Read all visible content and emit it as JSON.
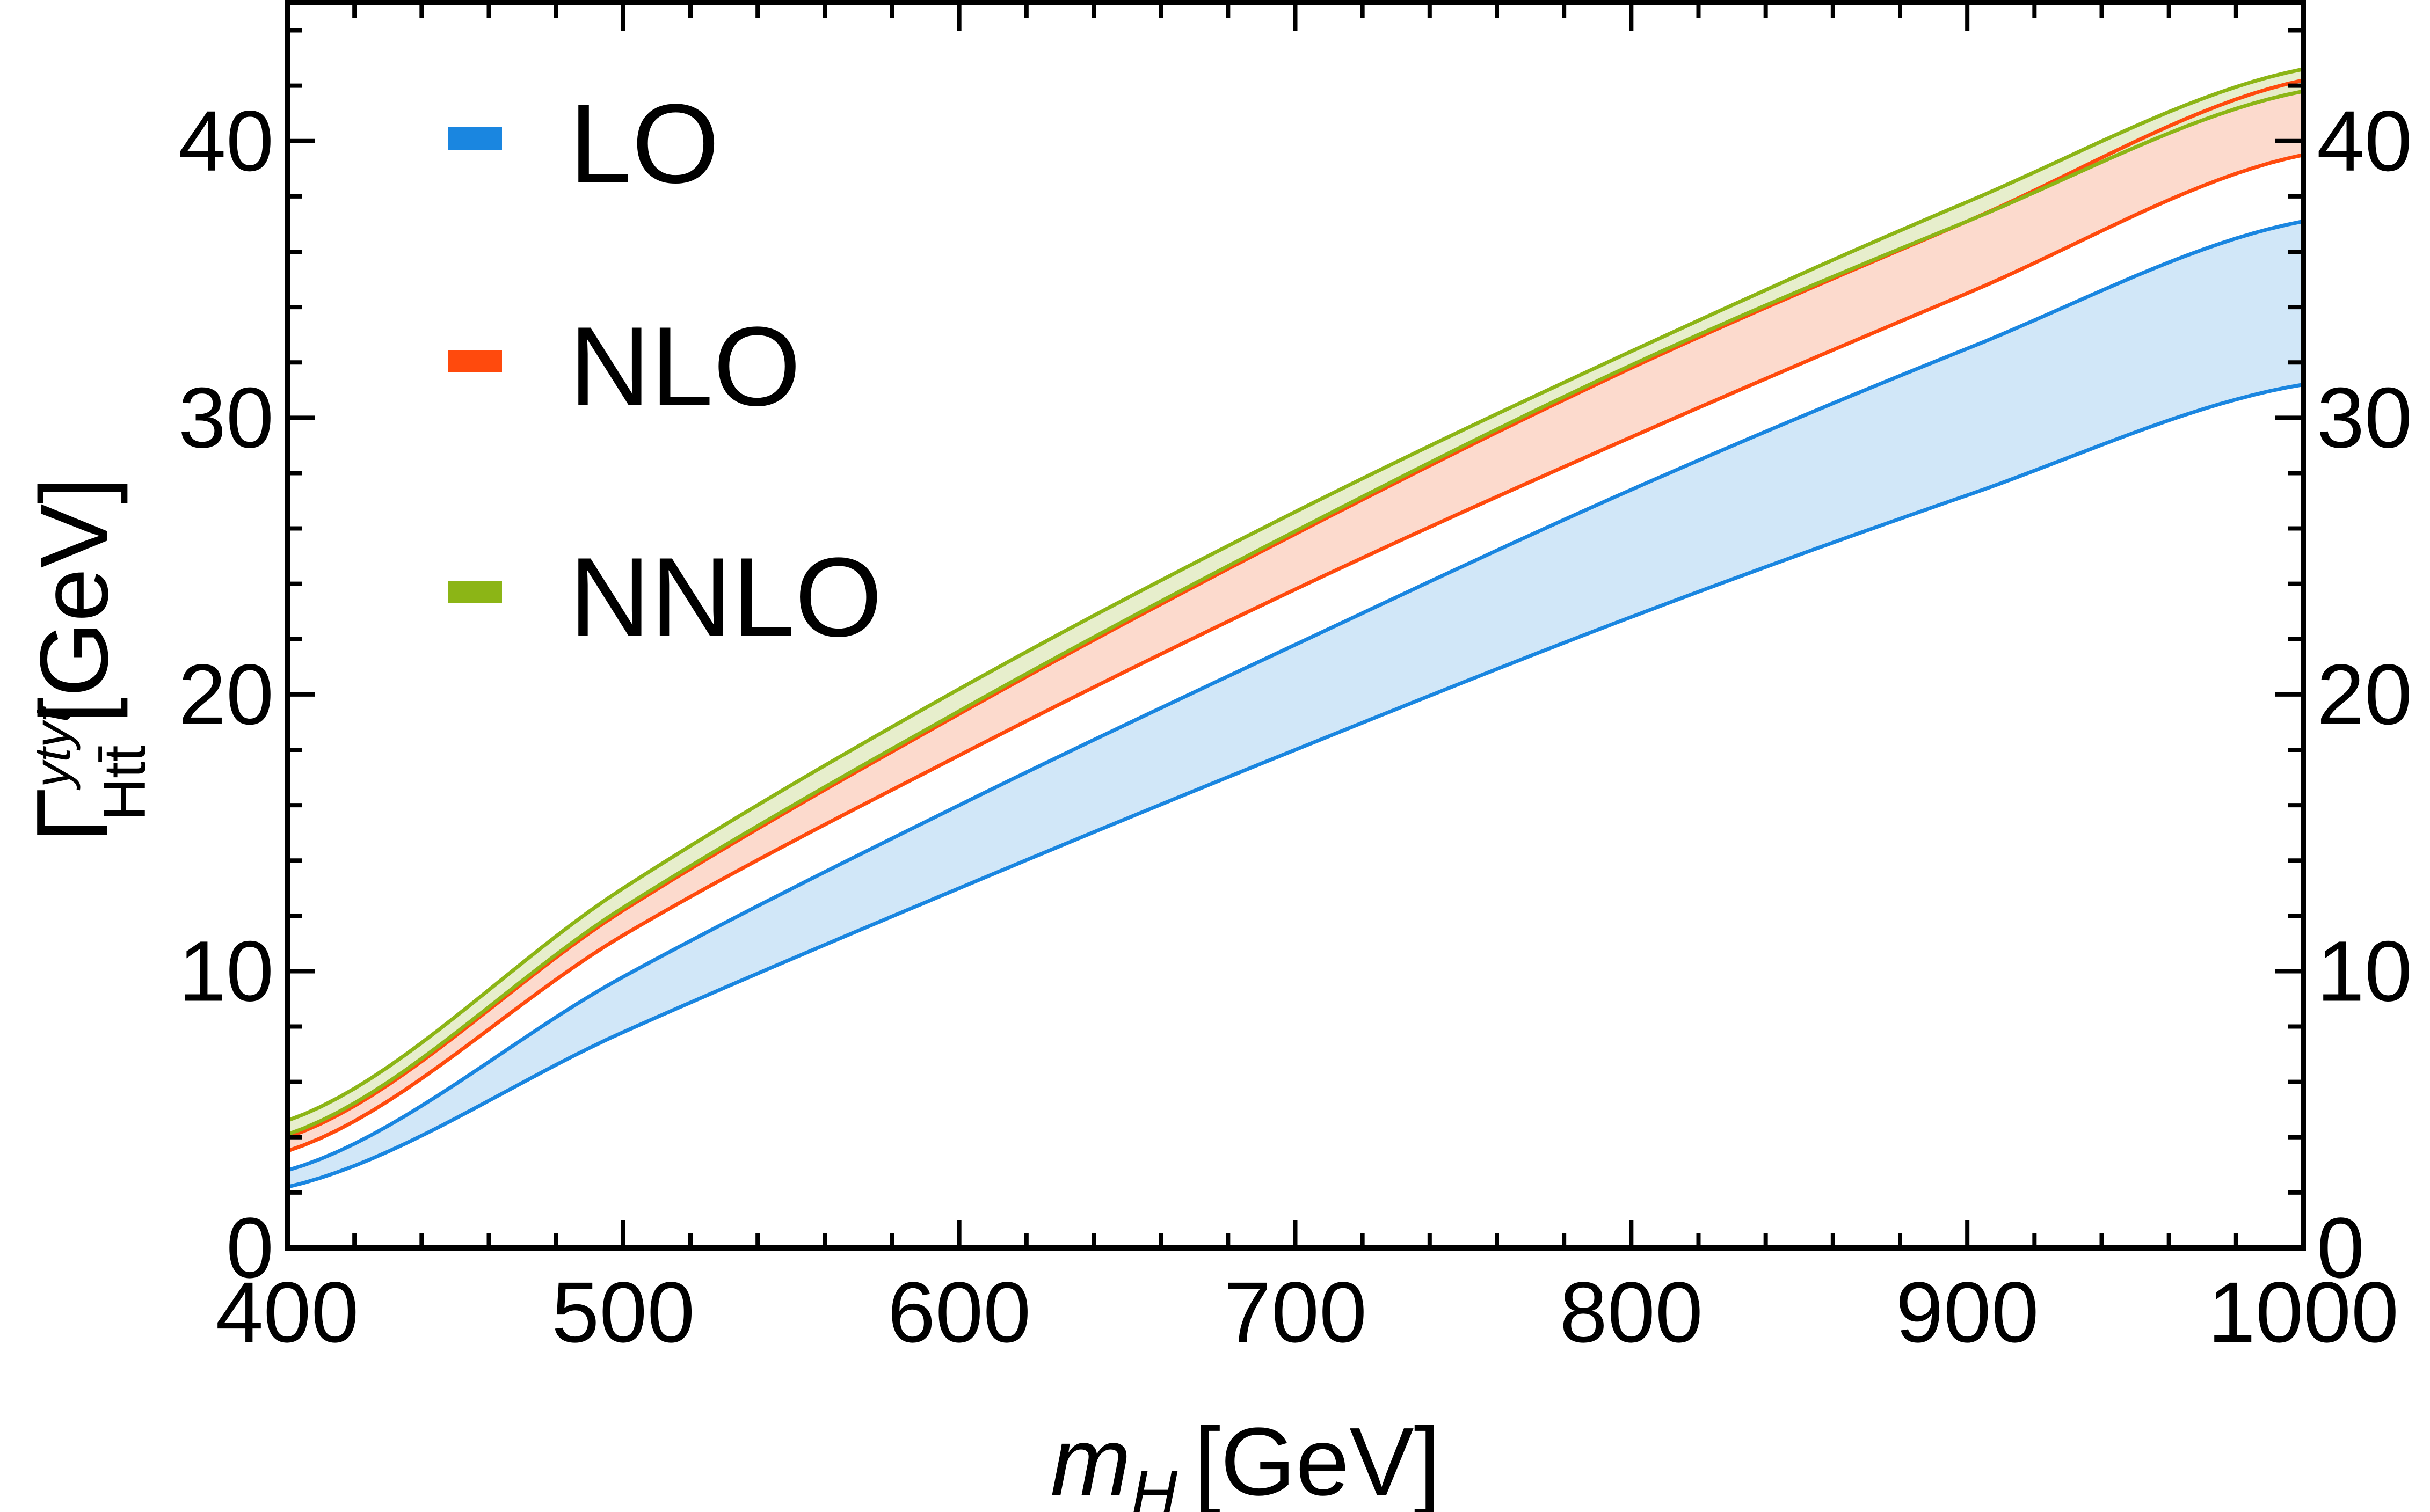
{
  "chart_data": {
    "type": "area",
    "title": "",
    "xlabel": {
      "symbol": "m",
      "subscript": "H",
      "unit": "[GeV]"
    },
    "ylabel": {
      "symbol": "Γ",
      "subscript": "Htt̄",
      "superscript": "ytyt",
      "unit": "[GeV]"
    },
    "xlim": [
      400,
      1000
    ],
    "ylim": [
      0,
      45
    ],
    "xticks": [
      400,
      500,
      600,
      700,
      800,
      900,
      1000
    ],
    "xtick_labels": [
      "400",
      "500",
      "600",
      "700",
      "800",
      "900",
      "1000"
    ],
    "yticks": [
      0,
      10,
      20,
      30,
      40
    ],
    "ytick_labels": [
      "0",
      "10",
      "20",
      "30",
      "40"
    ],
    "grid": false,
    "legend_position": "top-left",
    "x": [
      400,
      500,
      600,
      700,
      800,
      900,
      1000
    ],
    "series": [
      {
        "name": "LO",
        "color": "#1a86e0",
        "fill": "#cce4f7",
        "lower": [
          2.2,
          7.8,
          13.0,
          18.0,
          22.8,
          27.2,
          31.2
        ],
        "upper": [
          2.8,
          9.8,
          16.0,
          21.8,
          27.4,
          32.5,
          37.1
        ]
      },
      {
        "name": "NLO",
        "color": "#ff4a0d",
        "fill": "#fcd6c8",
        "lower": [
          3.5,
          11.3,
          17.8,
          23.8,
          29.3,
          34.5,
          39.5
        ],
        "upper": [
          4.0,
          12.2,
          19.3,
          25.8,
          31.8,
          37.1,
          42.2
        ]
      },
      {
        "name": "NNLO",
        "color": "#8cb516",
        "fill": "#e4ecc6",
        "lower": [
          4.1,
          12.3,
          19.4,
          25.9,
          31.9,
          37.1,
          41.8
        ],
        "upper": [
          4.6,
          13.0,
          20.2,
          26.6,
          32.4,
          37.8,
          42.6
        ]
      }
    ]
  }
}
